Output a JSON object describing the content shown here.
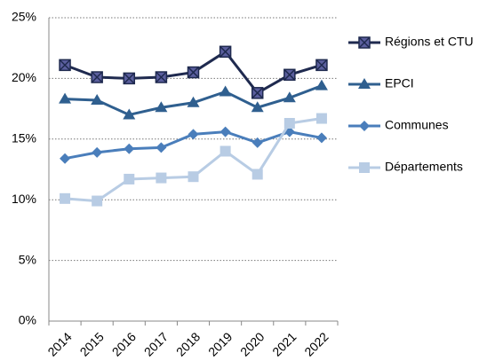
{
  "chart_data": {
    "type": "line",
    "categories": [
      "2014",
      "2015",
      "2016",
      "2017",
      "2018",
      "2019",
      "2020",
      "2021",
      "2022"
    ],
    "series": [
      {
        "name": "Régions et CTU",
        "color": "#1f2a4f",
        "marker": "square-x",
        "marker_color": "#5b5f9e",
        "values": [
          21.1,
          20.1,
          20.0,
          20.1,
          20.5,
          22.2,
          18.8,
          20.3,
          21.1
        ]
      },
      {
        "name": "EPCI",
        "color": "#2f5f8f",
        "marker": "triangle",
        "marker_color": "#2f5f8f",
        "values": [
          18.3,
          18.2,
          17.0,
          17.6,
          18.0,
          18.9,
          17.6,
          18.4,
          19.4
        ]
      },
      {
        "name": "Communes",
        "color": "#4a7ebb",
        "marker": "diamond",
        "marker_color": "#4a7ebb",
        "values": [
          13.4,
          13.9,
          14.2,
          14.3,
          15.4,
          15.6,
          14.7,
          15.6,
          15.1
        ]
      },
      {
        "name": "Départements",
        "color": "#b8cce4",
        "marker": "square",
        "marker_color": "#b8cce4",
        "values": [
          10.1,
          9.9,
          11.7,
          11.8,
          11.9,
          14.0,
          12.1,
          16.3,
          16.7
        ]
      }
    ],
    "ylim": [
      0,
      25
    ],
    "yticks": [
      {
        "value": 0,
        "label": "0%"
      },
      {
        "value": 5,
        "label": "5%"
      },
      {
        "value": 10,
        "label": "10%"
      },
      {
        "value": 15,
        "label": "15%"
      },
      {
        "value": 20,
        "label": "20%"
      },
      {
        "value": 25,
        "label": "25%"
      }
    ],
    "grid": true,
    "legend": "right"
  }
}
